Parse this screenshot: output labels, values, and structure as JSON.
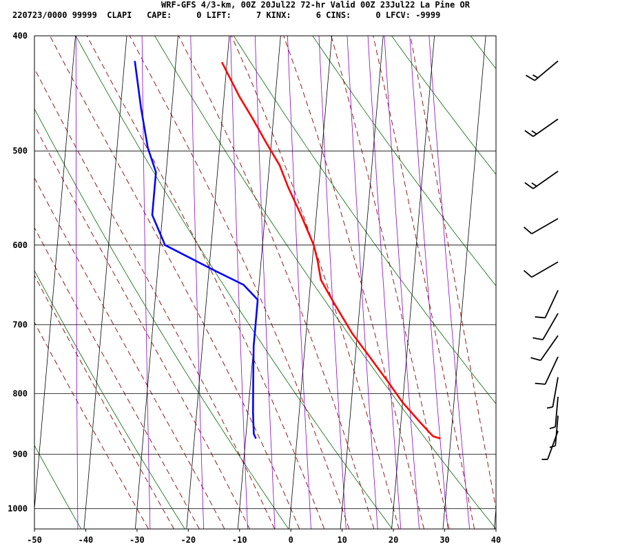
{
  "header": {
    "line1": "WRF-GFS 4/3-km, 00Z 20Jul22 72-hr Valid 00Z 23Jul22 La Pine OR",
    "line2": "220723/0000 99999  CLAPI   CAPE:     0 LIFT:     7 KINX:     6 CINS:     0 LFCV: -9999"
  },
  "chart_data": {
    "type": "line",
    "subtype": "skew-t log-p sounding",
    "title": "WRF-GFS 4/3-km, 00Z 20Jul22 72-hr Valid 00Z 23Jul22 La Pine OR",
    "xlabel": "",
    "ylabel": "",
    "x_ticks": [
      -50,
      -40,
      -30,
      -20,
      -10,
      0,
      10,
      20,
      30,
      40
    ],
    "y_ticks": [
      400,
      500,
      600,
      700,
      800,
      900,
      1000
    ],
    "xlim": [
      -50,
      40
    ],
    "ylim": [
      1040,
      400
    ],
    "y_scale": "log",
    "grid": true,
    "series": [
      {
        "name": "",
        "color": "#ff0000",
        "points": [
          [
            28,
            873
          ],
          [
            26.5,
            869
          ],
          [
            24,
            848
          ],
          [
            20,
            814
          ],
          [
            17,
            784
          ],
          [
            13,
            747
          ],
          [
            9,
            712
          ],
          [
            5,
            672
          ],
          [
            2,
            642
          ],
          [
            1,
            618
          ],
          [
            0,
            600
          ],
          [
            -3,
            566
          ],
          [
            -6,
            536
          ],
          [
            -8,
            514
          ],
          [
            -11,
            492
          ],
          [
            -14,
            470
          ],
          [
            -17,
            450
          ],
          [
            -21,
            421
          ]
        ]
      },
      {
        "name": "",
        "color": "#0000ff",
        "points": [
          [
            -8,
            873
          ],
          [
            -8.5,
            865
          ],
          [
            -9,
            830
          ],
          [
            -9.5,
            780
          ],
          [
            -10,
            730
          ],
          [
            -10,
            690
          ],
          [
            -10,
            667
          ],
          [
            -13,
            648
          ],
          [
            -19,
            630
          ],
          [
            -29,
            600
          ],
          [
            -32,
            566
          ],
          [
            -32,
            521
          ],
          [
            -34,
            497
          ],
          [
            -36,
            460
          ],
          [
            -38,
            420
          ]
        ]
      }
    ],
    "background_lines": [
      {
        "kind": "dry adiabats",
        "color": "#006600"
      },
      {
        "kind": "saturated adiabats",
        "color": "#8b0000"
      },
      {
        "kind": "mixing ratio lines",
        "color": "#8800cc"
      },
      {
        "kind": "isotherms and isobars",
        "color": "#000000"
      }
    ],
    "wind_barbs": [
      {
        "pressure": 420,
        "direction": 230,
        "speed": 15
      },
      {
        "pressure": 470,
        "direction": 235,
        "speed": 15
      },
      {
        "pressure": 520,
        "direction": 235,
        "speed": 15
      },
      {
        "pressure": 570,
        "direction": 240,
        "speed": 10
      },
      {
        "pressure": 620,
        "direction": 240,
        "speed": 10
      },
      {
        "pressure": 655,
        "direction": 205,
        "speed": 10
      },
      {
        "pressure": 685,
        "direction": 210,
        "speed": 10
      },
      {
        "pressure": 715,
        "direction": 215,
        "speed": 10
      },
      {
        "pressure": 745,
        "direction": 205,
        "speed": 10
      },
      {
        "pressure": 775,
        "direction": 190,
        "speed": 5
      },
      {
        "pressure": 805,
        "direction": 185,
        "speed": 5
      },
      {
        "pressure": 835,
        "direction": 185,
        "speed": 5
      },
      {
        "pressure": 860,
        "direction": 200,
        "speed": 5
      }
    ]
  }
}
